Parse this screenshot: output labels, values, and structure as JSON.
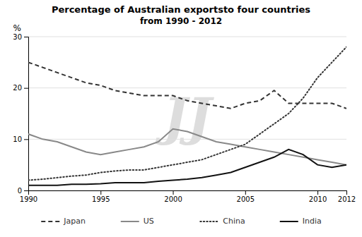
{
  "chart_data": {
    "type": "line",
    "title": "Percentage of Australian exportsto four countries",
    "subtitle": "from 1990 - 2012",
    "y_label": "%",
    "annotations": [
      "JJ"
    ],
    "x": [
      1990,
      1991,
      1992,
      1993,
      1994,
      1995,
      1996,
      1997,
      1998,
      1999,
      2000,
      2001,
      2002,
      2003,
      2004,
      2005,
      2006,
      2007,
      2008,
      2009,
      2010,
      2011,
      2012
    ],
    "series": [
      {
        "name": "Japan",
        "color": "#333333",
        "line_style": "dashed",
        "values": [
          25,
          24,
          23,
          22,
          21,
          20.5,
          19.5,
          19,
          18.5,
          18.5,
          18.5,
          17.5,
          17,
          16.5,
          16,
          17,
          17.5,
          19.5,
          17,
          17,
          17,
          17,
          16
        ]
      },
      {
        "name": "US",
        "color": "#888888",
        "line_style": "solid",
        "values": [
          11,
          10,
          9.5,
          8.5,
          7.5,
          7,
          7.5,
          8,
          8.5,
          9.5,
          12,
          11.5,
          10.5,
          9.5,
          9,
          8.5,
          8,
          7.5,
          7,
          6.5,
          6,
          5.5,
          5
        ]
      },
      {
        "name": "China",
        "color": "#333333",
        "line_style": "dotted",
        "values": [
          2,
          2.2,
          2.5,
          2.8,
          3,
          3.5,
          3.8,
          4,
          4,
          4.5,
          5,
          5.5,
          6,
          7,
          8,
          9,
          11,
          13,
          15,
          18,
          22,
          25,
          28
        ]
      },
      {
        "name": "India",
        "color": "#111111",
        "line_style": "solid",
        "values": [
          1,
          1,
          1,
          1.2,
          1.2,
          1.3,
          1.5,
          1.5,
          1.5,
          1.8,
          2,
          2.2,
          2.5,
          3,
          3.5,
          4.5,
          5.5,
          6.5,
          8,
          7,
          5,
          4.5,
          5
        ]
      }
    ],
    "xlim": [
      1990,
      2012
    ],
    "xticks": [
      1990,
      1995,
      2000,
      2005,
      2010,
      2012
    ],
    "ylim": [
      0,
      30
    ],
    "yticks": [
      0,
      10,
      20,
      30
    ],
    "grid": true,
    "legend": "bottom"
  }
}
